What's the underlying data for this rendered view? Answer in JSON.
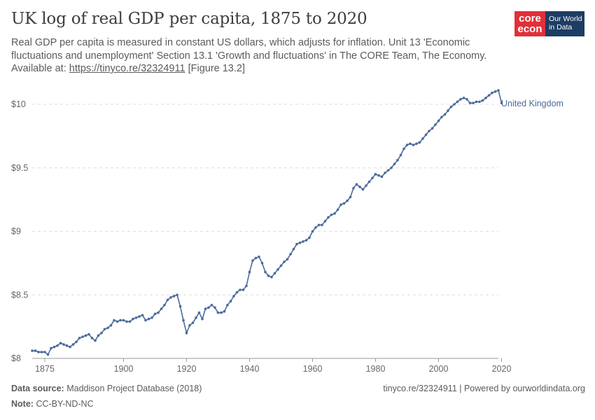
{
  "title": "UK log of real GDP per capita, 1875 to 2020",
  "subtitle": "Real GDP per capita is measured in constant US dollars, which adjusts for inflation. Unit 13 'Economic fluctuations and unemployment' Section 13.1 'Growth and fluctuations' in The CORE Team, The Economy. Available at: ",
  "subtitle_link": "https://tinyco.re/32324911",
  "subtitle_tail": " [Figure 13.2]",
  "logo": {
    "core_line1": "core",
    "core_line2": "econ",
    "owid_line1": "Our World",
    "owid_line2": "in Data"
  },
  "footer": {
    "source_label": "Data source:",
    "source_value": "Maddison Project Database (2018)",
    "note_label": "Note:",
    "note_value": "CC-BY-ND-NC",
    "right": "tinyco.re/32324911 | Powered by ourworldindata.org"
  },
  "colors": {
    "series": "#4c6a9c",
    "grid": "#dddddd",
    "axis_text": "#666666"
  },
  "chart_data": {
    "type": "line",
    "ylabel_ticks": [
      "$8",
      "$8.5",
      "$9",
      "$9.5",
      "$10"
    ],
    "yticks": [
      8,
      8.5,
      9,
      9.5,
      10
    ],
    "ylim": [
      8,
      10.2
    ],
    "xlim": [
      1871,
      2019
    ],
    "xticks": [
      1875,
      1900,
      1920,
      1940,
      1960,
      1980,
      2000,
      2020
    ],
    "grid": "horizontal dashed",
    "series": [
      {
        "name": "United Kingdom",
        "x": [
          1871,
          1872,
          1873,
          1874,
          1875,
          1876,
          1877,
          1878,
          1879,
          1880,
          1881,
          1882,
          1883,
          1884,
          1885,
          1886,
          1887,
          1888,
          1889,
          1890,
          1891,
          1892,
          1893,
          1894,
          1895,
          1896,
          1897,
          1898,
          1899,
          1900,
          1901,
          1902,
          1903,
          1904,
          1905,
          1906,
          1907,
          1908,
          1909,
          1910,
          1911,
          1912,
          1913,
          1914,
          1915,
          1916,
          1917,
          1918,
          1919,
          1920,
          1921,
          1922,
          1923,
          1924,
          1925,
          1926,
          1927,
          1928,
          1929,
          1930,
          1931,
          1932,
          1933,
          1934,
          1935,
          1936,
          1937,
          1938,
          1939,
          1940,
          1941,
          1942,
          1943,
          1944,
          1945,
          1946,
          1947,
          1948,
          1949,
          1950,
          1951,
          1952,
          1953,
          1954,
          1955,
          1956,
          1957,
          1958,
          1959,
          1960,
          1961,
          1962,
          1963,
          1964,
          1965,
          1966,
          1967,
          1968,
          1969,
          1970,
          1971,
          1972,
          1973,
          1974,
          1975,
          1976,
          1977,
          1978,
          1979,
          1980,
          1981,
          1982,
          1983,
          1984,
          1985,
          1986,
          1987,
          1988,
          1989,
          1990,
          1991,
          1992,
          1993,
          1994,
          1995,
          1996,
          1997,
          1998,
          1999,
          2000,
          2001,
          2002,
          2003,
          2004,
          2005,
          2006,
          2007,
          2008,
          2009,
          2010,
          2011,
          2012,
          2013,
          2014,
          2015,
          2016,
          2017,
          2018,
          2019
        ],
        "y": [
          8.06,
          8.06,
          8.05,
          8.05,
          8.05,
          8.03,
          8.08,
          8.09,
          8.1,
          8.12,
          8.11,
          8.1,
          8.09,
          8.11,
          8.13,
          8.16,
          8.17,
          8.18,
          8.19,
          8.16,
          8.14,
          8.18,
          8.2,
          8.23,
          8.24,
          8.26,
          8.3,
          8.29,
          8.3,
          8.3,
          8.29,
          8.29,
          8.31,
          8.32,
          8.33,
          8.34,
          8.3,
          8.31,
          8.32,
          8.35,
          8.36,
          8.39,
          8.42,
          8.46,
          8.48,
          8.49,
          8.5,
          8.41,
          8.3,
          8.2,
          8.26,
          8.28,
          8.32,
          8.36,
          8.31,
          8.39,
          8.4,
          8.42,
          8.4,
          8.36,
          8.36,
          8.37,
          8.42,
          8.45,
          8.49,
          8.52,
          8.54,
          8.54,
          8.57,
          8.68,
          8.77,
          8.79,
          8.8,
          8.75,
          8.68,
          8.65,
          8.64,
          8.67,
          8.7,
          8.73,
          8.76,
          8.78,
          8.82,
          8.86,
          8.9,
          8.91,
          8.92,
          8.93,
          8.95,
          9.0,
          9.03,
          9.05,
          9.05,
          9.08,
          9.11,
          9.13,
          9.14,
          9.17,
          9.21,
          9.22,
          9.24,
          9.27,
          9.34,
          9.37,
          9.35,
          9.33,
          9.36,
          9.39,
          9.42,
          9.45,
          9.44,
          9.43,
          9.46,
          9.48,
          9.5,
          9.53,
          9.56,
          9.6,
          9.65,
          9.68,
          9.69,
          9.68,
          9.69,
          9.7,
          9.73,
          9.76,
          9.79,
          9.81,
          9.84,
          9.87,
          9.9,
          9.92,
          9.95,
          9.98,
          10.0,
          10.02,
          10.04,
          10.05,
          10.04,
          10.01,
          10.01,
          10.02,
          10.02,
          10.03,
          10.05,
          10.07,
          10.09,
          10.1,
          10.11
        ]
      }
    ],
    "series_label": "United Kingdom",
    "last_point": {
      "x": 2020,
      "y": 10.01
    }
  }
}
